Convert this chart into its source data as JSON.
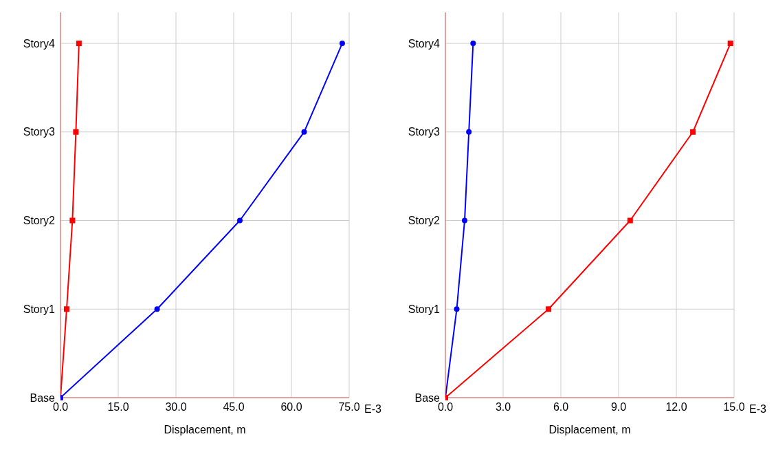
{
  "chart_data": [
    {
      "type": "line",
      "orientation": "horizontal",
      "xlabel": "Displacement, m",
      "annotations": [
        "E-3"
      ],
      "xlim": [
        0,
        75
      ],
      "xticks": [
        {
          "value": 0,
          "label": "0.0"
        },
        {
          "value": 15,
          "label": "15.0"
        },
        {
          "value": 30,
          "label": "30.0"
        },
        {
          "value": 45,
          "label": "45.0"
        },
        {
          "value": 60,
          "label": "60.0"
        },
        {
          "value": 75,
          "label": "75.0"
        }
      ],
      "categories": [
        "Story4",
        "Story3",
        "Story2",
        "Story1",
        "Base"
      ],
      "grid": true,
      "line_style": "solid",
      "series": [
        {
          "color": "#ff0000",
          "marker": "square",
          "values": [
            4.8,
            4.0,
            3.1,
            1.6,
            0
          ]
        },
        {
          "color": "#0000ff",
          "marker": "circle",
          "values": [
            73.2,
            63.3,
            46.6,
            25.1,
            0
          ]
        }
      ]
    },
    {
      "type": "line",
      "orientation": "horizontal",
      "xlabel": "Displacement, m",
      "annotations": [
        "E-3"
      ],
      "xlim": [
        0,
        15
      ],
      "xticks": [
        {
          "value": 0,
          "label": "0.0"
        },
        {
          "value": 3,
          "label": "3.0"
        },
        {
          "value": 6,
          "label": "6.0"
        },
        {
          "value": 9,
          "label": "9.0"
        },
        {
          "value": 12,
          "label": "12.0"
        },
        {
          "value": 15,
          "label": "15.0"
        }
      ],
      "categories": [
        "Story4",
        "Story3",
        "Story2",
        "Story1",
        "Base"
      ],
      "grid": true,
      "line_style": "solid",
      "series": [
        {
          "color": "#0000ff",
          "marker": "circle",
          "values": [
            1.44,
            1.22,
            1.0,
            0.59,
            0
          ]
        },
        {
          "color": "#ff0000",
          "marker": "square",
          "values": [
            14.81,
            12.86,
            9.6,
            5.36,
            0
          ]
        }
      ]
    }
  ]
}
